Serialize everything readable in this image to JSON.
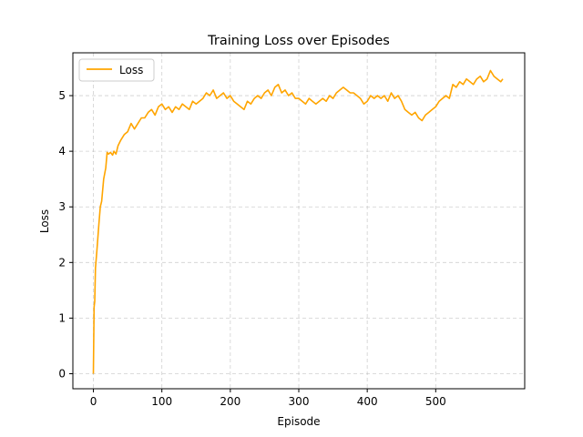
{
  "chart_data": {
    "type": "line",
    "title": "Training Loss over Episodes",
    "xlabel": "Episode",
    "ylabel": "Loss",
    "xlim": [
      -30,
      630
    ],
    "ylim": [
      -0.27,
      5.77
    ],
    "xticks": [
      0,
      100,
      200,
      300,
      400,
      500
    ],
    "yticks": [
      0,
      1,
      2,
      3,
      4,
      5
    ],
    "grid": true,
    "grid_style": "dashed",
    "legend_position": "top-left",
    "series": [
      {
        "name": "Loss",
        "color": "#FFA500",
        "x": [
          0,
          1,
          2,
          3,
          5,
          8,
          10,
          12,
          15,
          18,
          20,
          22,
          25,
          28,
          30,
          33,
          36,
          40,
          45,
          50,
          55,
          60,
          65,
          70,
          75,
          80,
          85,
          90,
          95,
          100,
          105,
          110,
          115,
          120,
          125,
          130,
          135,
          140,
          145,
          150,
          155,
          160,
          165,
          170,
          175,
          180,
          185,
          190,
          195,
          200,
          205,
          210,
          215,
          220,
          225,
          230,
          235,
          240,
          245,
          250,
          255,
          260,
          265,
          270,
          275,
          280,
          285,
          290,
          295,
          300,
          305,
          310,
          315,
          320,
          325,
          330,
          335,
          340,
          345,
          350,
          355,
          360,
          365,
          370,
          375,
          380,
          385,
          390,
          395,
          400,
          405,
          410,
          415,
          420,
          425,
          430,
          435,
          440,
          445,
          450,
          455,
          460,
          465,
          470,
          475,
          480,
          485,
          490,
          495,
          500,
          505,
          510,
          515,
          520,
          525,
          530,
          535,
          540,
          545,
          550,
          555,
          560,
          565,
          570,
          575,
          580,
          585,
          590,
          595,
          598
        ],
        "values": [
          0.0,
          1.2,
          1.3,
          1.9,
          2.2,
          2.7,
          3.0,
          3.1,
          3.5,
          3.7,
          3.98,
          3.95,
          3.98,
          3.93,
          4.0,
          3.95,
          4.1,
          4.2,
          4.3,
          4.35,
          4.5,
          4.4,
          4.5,
          4.6,
          4.6,
          4.7,
          4.75,
          4.65,
          4.8,
          4.85,
          4.75,
          4.8,
          4.7,
          4.8,
          4.75,
          4.85,
          4.8,
          4.75,
          4.9,
          4.85,
          4.9,
          4.95,
          5.05,
          5.0,
          5.1,
          4.95,
          5.0,
          5.05,
          4.95,
          5.0,
          4.9,
          4.85,
          4.8,
          4.75,
          4.9,
          4.85,
          4.95,
          5.0,
          4.95,
          5.05,
          5.1,
          5.0,
          5.15,
          5.2,
          5.05,
          5.1,
          5.0,
          5.05,
          4.95,
          4.95,
          4.9,
          4.85,
          4.95,
          4.9,
          4.85,
          4.9,
          4.95,
          4.9,
          5.0,
          4.95,
          5.05,
          5.1,
          5.15,
          5.1,
          5.05,
          5.05,
          5.0,
          4.95,
          4.85,
          4.9,
          5.0,
          4.95,
          5.0,
          4.95,
          5.0,
          4.9,
          5.05,
          4.95,
          5.0,
          4.9,
          4.75,
          4.7,
          4.65,
          4.7,
          4.6,
          4.55,
          4.65,
          4.7,
          4.75,
          4.8,
          4.9,
          4.95,
          5.0,
          4.95,
          5.2,
          5.15,
          5.25,
          5.2,
          5.3,
          5.25,
          5.2,
          5.3,
          5.35,
          5.25,
          5.3,
          5.45,
          5.35,
          5.3,
          5.25,
          5.3
        ]
      }
    ]
  }
}
